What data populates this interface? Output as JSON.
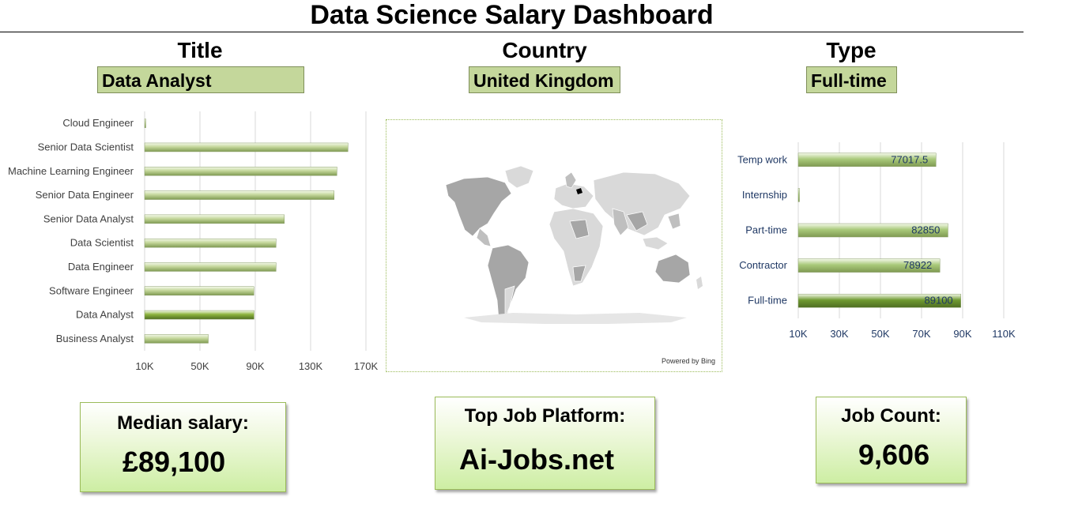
{
  "header": {
    "title": "Data Science Salary Dashboard"
  },
  "filters": {
    "title": {
      "label": "Title",
      "value": "Data Analyst"
    },
    "country": {
      "label": "Country",
      "value": "United Kingdom"
    },
    "type": {
      "label": "Type",
      "value": "Full-time"
    }
  },
  "map": {
    "credit": "Powered by Bing"
  },
  "cards": {
    "median": {
      "label": "Median salary:",
      "value": "£89,100"
    },
    "platform": {
      "label": "Top Job Platform:",
      "value": "Ai-Jobs.net"
    },
    "count": {
      "label": "Job Count:",
      "value": "9,606"
    }
  },
  "chart_data": [
    {
      "type": "bar",
      "orientation": "horizontal",
      "categories": [
        "Cloud Engineer",
        "Senior Data Scientist",
        "Machine Learning Engineer",
        "Senior Data Engineer",
        "Senior Data Analyst",
        "Data Scientist",
        "Data Engineer",
        "Software Engineer",
        "Data Analyst",
        "Business Analyst"
      ],
      "values": [
        10000,
        157000,
        149000,
        147000,
        111000,
        105000,
        105000,
        89000,
        89100,
        56000
      ],
      "highlight": "Data Analyst",
      "xlim": [
        10000,
        170000
      ],
      "ticks": [
        10000,
        50000,
        90000,
        130000,
        170000
      ],
      "tick_labels": [
        "10K",
        "50K",
        "90K",
        "130K",
        "170K"
      ],
      "grid": true,
      "colors": {
        "bar": "#c4d79b",
        "highlight": "#8db43e"
      }
    },
    {
      "type": "bar",
      "orientation": "horizontal",
      "categories": [
        "Temp work",
        "Internship",
        "Part-time",
        "Contractor",
        "Full-time"
      ],
      "values": [
        77017.5,
        10000,
        82850,
        78922,
        89100
      ],
      "data_labels": [
        "77017.5",
        "",
        "82850",
        "78922",
        "89100"
      ],
      "highlight": "Full-time",
      "xlim": [
        10000,
        110000
      ],
      "ticks": [
        10000,
        30000,
        50000,
        70000,
        90000,
        110000
      ],
      "tick_labels": [
        "10K",
        "30K",
        "50K",
        "70K",
        "90K",
        "110K"
      ],
      "grid": true,
      "colors": {
        "bar": "#a9c97a",
        "highlight": "#6f9a31",
        "label": "#1f3864"
      }
    }
  ]
}
